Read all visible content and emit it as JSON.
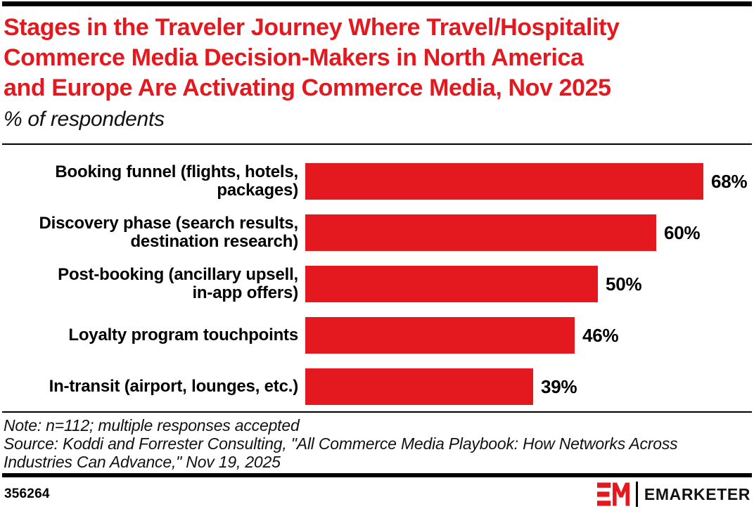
{
  "colors": {
    "accent_red": "#e4191f",
    "rule_black": "#000000",
    "text_black": "#000000"
  },
  "header": {
    "title": "Stages in the Traveler Journey Where Travel/Hospitality\nCommerce Media Decision-Makers in North America\nand Europe Are Activating Commerce Media, Nov 2025",
    "subtitle": "% of respondents"
  },
  "chart_data": {
    "type": "bar",
    "orientation": "horizontal",
    "title": "Stages in the Traveler Journey Where Travel/Hospitality Commerce Media Decision-Makers in North America and Europe Are Activating Commerce Media, Nov 2025",
    "unit": "% of respondents",
    "xlim": [
      0,
      76
    ],
    "grid": false,
    "legend": false,
    "bar_color": "#e4191f",
    "value_label_format": "percent",
    "categories": [
      "Booking funnel (flights, hotels, packages)",
      "Discovery phase (search results, destination research)",
      "Post-booking (ancillary upsell, in-app offers)",
      "Loyalty program touchpoints",
      "In-transit (airport, lounges, etc.)"
    ],
    "values": [
      68,
      60,
      50,
      46,
      39
    ],
    "points": [
      {
        "label_lines": "Booking funnel (flights, hotels,\npackages)",
        "value": 68,
        "display": "68%"
      },
      {
        "label_lines": "Discovery phase (search results,\ndestination research)",
        "value": 60,
        "display": "60%"
      },
      {
        "label_lines": "Post-booking (ancillary upsell,\nin-app offers)",
        "value": 50,
        "display": "50%"
      },
      {
        "label_lines": "Loyalty program touchpoints",
        "value": 46,
        "display": "46%"
      },
      {
        "label_lines": "In-transit (airport, lounges, etc.)",
        "value": 39,
        "display": "39%"
      }
    ]
  },
  "notes": {
    "note": "Note: n=112; multiple responses accepted",
    "source": "Source: Koddi and Forrester Consulting, \"All Commerce Media Playbook: How Networks Across\nIndustries Can Advance,\" Nov 19, 2025"
  },
  "footer": {
    "chart_id": "356264",
    "brand_name": "EMARKETER"
  }
}
